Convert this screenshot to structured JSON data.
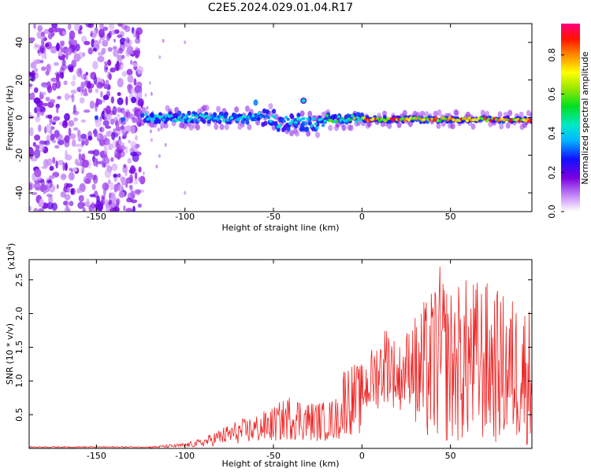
{
  "title": "C2E5.2024.029.01.04.R17",
  "chart_data": [
    {
      "type": "heatmap",
      "xlabel": "Height of straight line (km)",
      "ylabel": "Frequency (Hz)",
      "xlim": [
        -188,
        96
      ],
      "ylim": [
        -50,
        50
      ],
      "xticks": [
        -150,
        -100,
        -50,
        0,
        50
      ],
      "yticks": [
        -40,
        -20,
        0,
        20,
        40
      ],
      "colorbar": {
        "label": "Normalized spectral amplitude",
        "ticks": [
          "0.0",
          "0.2",
          "0.4",
          "0.6",
          "0.8"
        ],
        "range": [
          0,
          0.96
        ]
      },
      "features": [
        {
          "name": "broadband noise region",
          "x_range": [
            -188,
            -124
          ],
          "y_range": [
            -50,
            50
          ]
        },
        {
          "name": "signal band",
          "x_range": [
            -124,
            96
          ],
          "center_frequency": 0
        }
      ]
    },
    {
      "type": "line",
      "xlabel": "Height of straight line (km)",
      "ylabel": "SNR (10 * v/v)",
      "multiplier": "(x10",
      "multiplier_exp": "4",
      "multiplier_close": ")",
      "xlim": [
        -188,
        96
      ],
      "ylim": [
        0,
        2.8
      ],
      "xticks": [
        -150,
        -100,
        -50,
        0,
        50
      ],
      "yticks": [
        "0.5",
        "1.0",
        "1.5",
        "2.0",
        "2.5"
      ],
      "line_color": "#ee2222",
      "envelope": [
        [
          -188,
          0.02
        ],
        [
          -120,
          0.03
        ],
        [
          -100,
          0.08
        ],
        [
          -90,
          0.15
        ],
        [
          -80,
          0.3
        ],
        [
          -70,
          0.42
        ],
        [
          -60,
          0.5
        ],
        [
          -50,
          0.62
        ],
        [
          -40,
          0.82
        ],
        [
          -30,
          0.7
        ],
        [
          -20,
          0.7
        ],
        [
          -12,
          0.8
        ],
        [
          -10,
          1.3
        ],
        [
          0,
          1.25
        ],
        [
          10,
          1.7
        ],
        [
          15,
          1.95
        ],
        [
          20,
          1.5
        ],
        [
          30,
          2.0
        ],
        [
          40,
          2.4
        ],
        [
          43,
          2.76
        ],
        [
          50,
          2.4
        ],
        [
          60,
          2.55
        ],
        [
          70,
          2.5
        ],
        [
          80,
          2.3
        ],
        [
          90,
          2.25
        ],
        [
          96,
          2.1
        ]
      ]
    }
  ]
}
